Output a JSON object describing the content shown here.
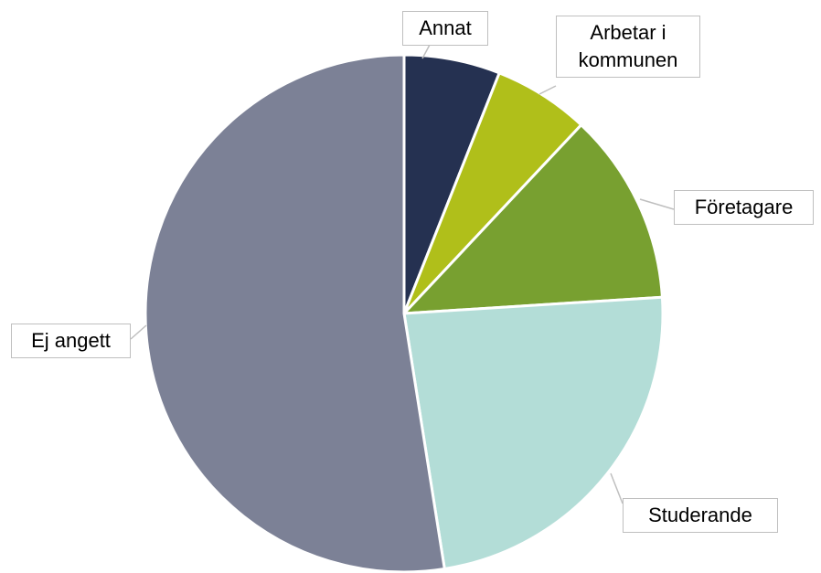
{
  "chart_data": {
    "type": "pie",
    "categories": [
      "Annat",
      "Arbetar i kommunen",
      "Företagare",
      "Studerande",
      "Ej angett"
    ],
    "values": [
      6,
      6,
      12,
      23.5,
      52.5
    ],
    "colors": [
      "#253151",
      "#b0bf1a",
      "#78a030",
      "#b3ddd7",
      "#7c8196"
    ]
  }
}
